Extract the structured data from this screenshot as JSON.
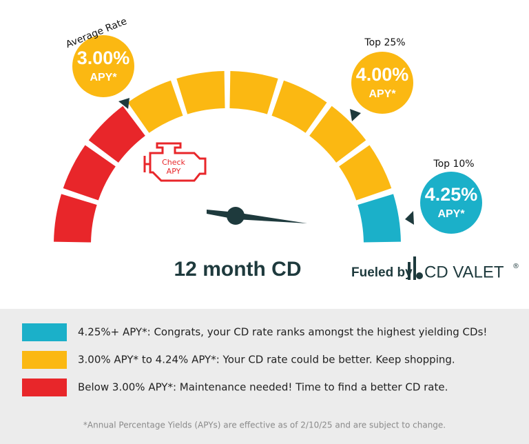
{
  "gauge": {
    "markers": [
      {
        "label": "Average Rate",
        "rate": "3.00%",
        "unit": "APY*"
      },
      {
        "label": "Top 25%",
        "rate": "4.00%",
        "unit": "APY*"
      },
      {
        "label": "Top 10%",
        "rate": "4.25%",
        "unit": "APY*"
      }
    ],
    "engine_light": {
      "line1": "Check",
      "line2": "APY"
    },
    "product": "12 month CD",
    "brand": {
      "prefix": "Fueled by",
      "name": "CD VALET",
      "mark": "®"
    }
  },
  "legend": [
    {
      "text": "4.25%+ APY*: Congrats, your CD rate ranks amongst the highest yielding CDs!"
    },
    {
      "text": "3.00% APY* to 4.24% APY*: Your CD rate could be better. Keep shopping."
    },
    {
      "text": "Below 3.00% APY*: Maintenance needed! Time to find a better CD rate."
    }
  ],
  "footnote": "*Annual Percentage Yields (APYs) are effective as of 2/10/25 and are subject to change."
}
